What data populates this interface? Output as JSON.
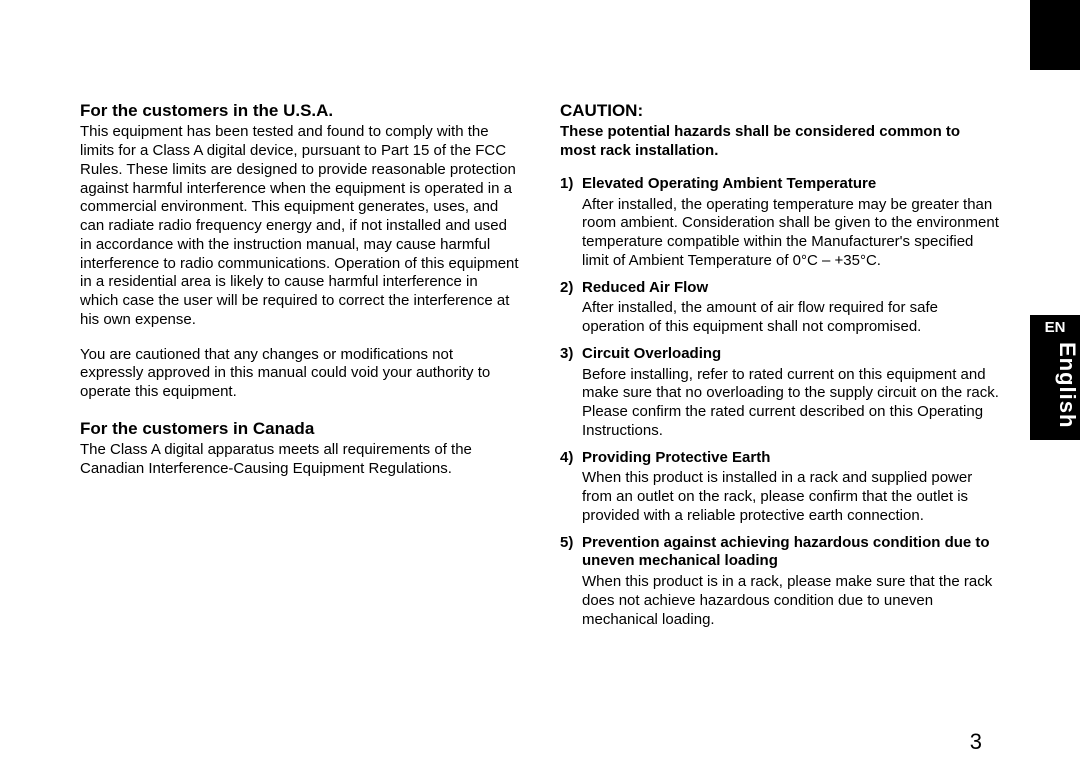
{
  "sidebar": {
    "code": "EN",
    "language": "English"
  },
  "left": {
    "usa_heading": "For the customers in the U.S.A.",
    "usa_para1": "This equipment has been tested and found to comply with the limits for a Class A digital device, pursuant to Part 15 of the FCC Rules.  These limits are designed to provide reasonable protection against harmful interference when the equipment is operated in a commercial environment.  This equipment generates, uses, and can radiate radio frequency energy and, if not installed and used in accordance with the instruction manual, may cause harmful interference to radio communications.  Operation of this equipment in a residential area is likely to cause harmful interference in which case the user will be required to correct the interference at his own expense.",
    "usa_para2": "You are cautioned that any changes or modifications not expressly approved in this manual could void your authority to operate this equipment.",
    "canada_heading": "For the customers in Canada",
    "canada_para": "The Class A digital apparatus meets all requirements of the Canadian Interference-Causing Equipment Regulations."
  },
  "right": {
    "caution_heading": "CAUTION:",
    "intro": "These potential hazards shall be considered common to most rack installation.",
    "items": [
      {
        "num": "1)",
        "head": "Elevated Operating Ambient Temperature",
        "body": "After installed, the operating temperature may be greater than room ambient.  Consideration shall be given to the environment temperature compatible within the Manufacturer's specified limit of Ambient Temperature of 0°C – +35°C."
      },
      {
        "num": "2)",
        "head": "Reduced Air Flow",
        "body": "After installed, the amount of air flow required for safe operation of this equipment shall not compromised."
      },
      {
        "num": "3)",
        "head": "Circuit Overloading",
        "body": "Before installing, refer to rated current on this equipment and make sure that no overloading to the supply circuit on the rack.\nPlease confirm the rated current described on this Operating Instructions."
      },
      {
        "num": "4)",
        "head": "Providing Protective Earth",
        "body": "When this product is installed in a rack and supplied power from an outlet on the rack, please confirm that the outlet is provided with a reliable protective earth connection."
      },
      {
        "num": "5)",
        "head": "Prevention against achieving hazardous condition due to uneven mechanical loading",
        "body": "When this product is in a rack, please make sure that the rack does not achieve hazardous condition due to uneven mechanical loading."
      }
    ]
  },
  "page_number": "3"
}
